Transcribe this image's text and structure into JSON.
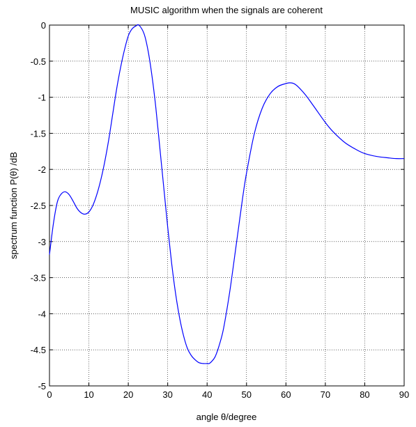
{
  "chart_data": {
    "type": "line",
    "title": "MUSIC algorithm when the signals are coherent",
    "xlabel": "angle θ/degree",
    "ylabel": "spectrum function P(θ) /dB",
    "xlim": [
      0,
      90
    ],
    "ylim": [
      -5,
      0
    ],
    "xticks": [
      0,
      10,
      20,
      30,
      40,
      50,
      60,
      70,
      80,
      90
    ],
    "yticks": [
      0,
      -0.5,
      -1,
      -1.5,
      -2,
      -2.5,
      -3,
      -3.5,
      -4,
      -4.5,
      -5
    ],
    "xtick_labels": [
      "0",
      "10",
      "20",
      "30",
      "40",
      "50",
      "60",
      "70",
      "80",
      "90"
    ],
    "ytick_labels": [
      "0",
      "-0.5",
      "-1",
      "-1.5",
      "-2",
      "-2.5",
      "-3",
      "-3.5",
      "-4",
      "-4.5",
      "-5"
    ],
    "grid": true,
    "line_color": "#0000ff",
    "series": [
      {
        "x": [
          0,
          1,
          2,
          3,
          4,
          5,
          6,
          7,
          8,
          9,
          10,
          11,
          12,
          13,
          14,
          15,
          16,
          17,
          18,
          19,
          20,
          21,
          22,
          22.7,
          24,
          25,
          26,
          27,
          28,
          29,
          30,
          31,
          32,
          33,
          34,
          35,
          36,
          37,
          38,
          39,
          40,
          40.5,
          41,
          42,
          43,
          44,
          45,
          46,
          47,
          48,
          49,
          50,
          52,
          54,
          56,
          58,
          60,
          61,
          62,
          63,
          65,
          67,
          70,
          72,
          75,
          78,
          80,
          83,
          86,
          88,
          90
        ],
        "y": [
          -3.18,
          -2.75,
          -2.45,
          -2.34,
          -2.31,
          -2.35,
          -2.44,
          -2.54,
          -2.6,
          -2.62,
          -2.59,
          -2.5,
          -2.35,
          -2.15,
          -1.9,
          -1.6,
          -1.25,
          -0.9,
          -0.6,
          -0.35,
          -0.15,
          -0.05,
          -0.01,
          0.0,
          -0.12,
          -0.35,
          -0.7,
          -1.15,
          -1.7,
          -2.25,
          -2.8,
          -3.3,
          -3.72,
          -4.05,
          -4.3,
          -4.48,
          -4.58,
          -4.64,
          -4.68,
          -4.69,
          -4.69,
          -4.69,
          -4.67,
          -4.6,
          -4.45,
          -4.25,
          -3.95,
          -3.6,
          -3.2,
          -2.8,
          -2.4,
          -2.05,
          -1.5,
          -1.15,
          -0.95,
          -0.85,
          -0.81,
          -0.8,
          -0.81,
          -0.85,
          -0.97,
          -1.12,
          -1.35,
          -1.48,
          -1.63,
          -1.73,
          -1.78,
          -1.82,
          -1.84,
          -1.85,
          -1.85
        ]
      }
    ]
  }
}
